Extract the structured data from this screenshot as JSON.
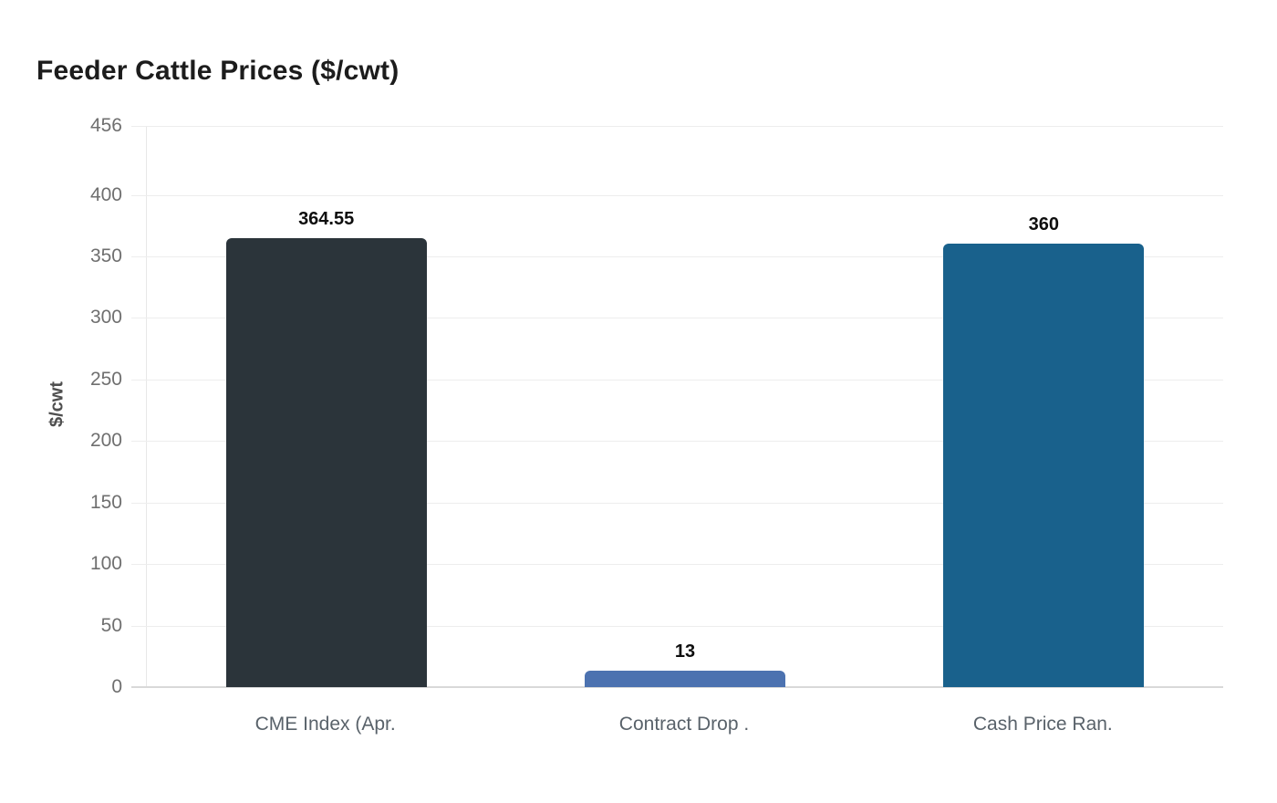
{
  "page": {
    "background_color": "#ffffff"
  },
  "chart_data": {
    "type": "bar",
    "title": "Feeder Cattle Prices ($/cwt)",
    "xlabel": "",
    "ylabel": "$/cwt",
    "categories": [
      "CME Index (Apr.",
      "Contract Drop .",
      "Cash Price Ran."
    ],
    "values": [
      364.55,
      13,
      360
    ],
    "value_labels": [
      "364.55",
      "13",
      "360"
    ],
    "bar_colors": [
      "#2b343a",
      "#4c72b0",
      "#19618c"
    ],
    "ylim": [
      0,
      456
    ],
    "yticks": [
      0,
      50,
      100,
      150,
      200,
      250,
      300,
      350,
      400,
      456
    ],
    "grid": true,
    "legend_position": "none",
    "colors": {
      "title_text": "#1c1c1c",
      "tick_text": "#6f6f6f",
      "category_text": "#59626a",
      "value_label_text": "#0e0e0e",
      "gridline": "#ededed",
      "baseline": "#d9d9d9",
      "axis_line": "#e8e8e8"
    }
  }
}
